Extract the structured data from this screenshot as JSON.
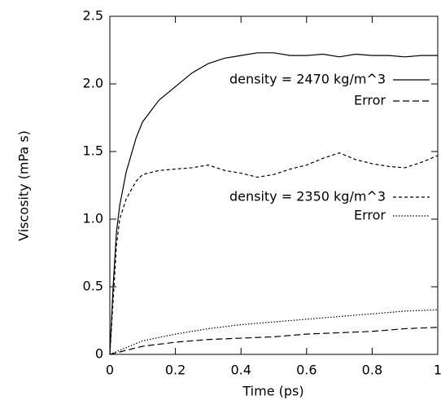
{
  "chart_data": {
    "type": "line",
    "xlabel": "Time (ps)",
    "ylabel": "Viscosity (mPa s)",
    "xlim": [
      0,
      1
    ],
    "ylim": [
      0,
      2.5
    ],
    "xticks": [
      0,
      0.2,
      0.4,
      0.6,
      0.8,
      1
    ],
    "yticks": [
      0,
      0.5,
      {
        "value": 1,
        "label": "1.0"
      },
      1.5,
      {
        "value": 2,
        "label": "2.0"
      },
      2.5
    ],
    "grid": false,
    "series": [
      {
        "name": "density = 2470 kg/m^3",
        "color": "#000000",
        "dash": "solid",
        "x": [
          0,
          0.01,
          0.02,
          0.03,
          0.05,
          0.08,
          0.1,
          0.15,
          0.2,
          0.25,
          0.3,
          0.35,
          0.4,
          0.45,
          0.5,
          0.55,
          0.6,
          0.65,
          0.7,
          0.75,
          0.8,
          0.85,
          0.9,
          0.95,
          1
        ],
        "values": [
          0,
          0.5,
          0.9,
          1.1,
          1.35,
          1.6,
          1.72,
          1.88,
          1.98,
          2.08,
          2.15,
          2.19,
          2.21,
          2.23,
          2.23,
          2.21,
          2.21,
          2.22,
          2.2,
          2.22,
          2.21,
          2.21,
          2.2,
          2.21,
          2.21
        ]
      },
      {
        "name": "Error",
        "color": "#000000",
        "dash": "dashed",
        "x": [
          0,
          0.1,
          0.2,
          0.3,
          0.4,
          0.5,
          0.6,
          0.7,
          0.8,
          0.9,
          1
        ],
        "values": [
          0,
          0.06,
          0.09,
          0.11,
          0.12,
          0.13,
          0.15,
          0.16,
          0.17,
          0.19,
          0.2
        ]
      },
      {
        "name": "density = 2350 kg/m^3",
        "color": "#000000",
        "dash": "short-dash",
        "x": [
          0,
          0.01,
          0.02,
          0.03,
          0.05,
          0.08,
          0.1,
          0.15,
          0.2,
          0.25,
          0.3,
          0.35,
          0.4,
          0.45,
          0.5,
          0.55,
          0.6,
          0.65,
          0.7,
          0.75,
          0.8,
          0.85,
          0.9,
          0.95,
          1
        ],
        "values": [
          0,
          0.4,
          0.8,
          1.0,
          1.15,
          1.28,
          1.33,
          1.36,
          1.37,
          1.38,
          1.4,
          1.36,
          1.34,
          1.31,
          1.33,
          1.37,
          1.4,
          1.45,
          1.49,
          1.44,
          1.41,
          1.39,
          1.38,
          1.42,
          1.47
        ]
      },
      {
        "name": "Error",
        "color": "#000000",
        "dash": "dotted",
        "x": [
          0,
          0.1,
          0.2,
          0.3,
          0.4,
          0.5,
          0.6,
          0.7,
          0.8,
          0.9,
          1
        ],
        "values": [
          0,
          0.1,
          0.15,
          0.19,
          0.22,
          0.24,
          0.26,
          0.28,
          0.3,
          0.32,
          0.33
        ]
      }
    ]
  }
}
